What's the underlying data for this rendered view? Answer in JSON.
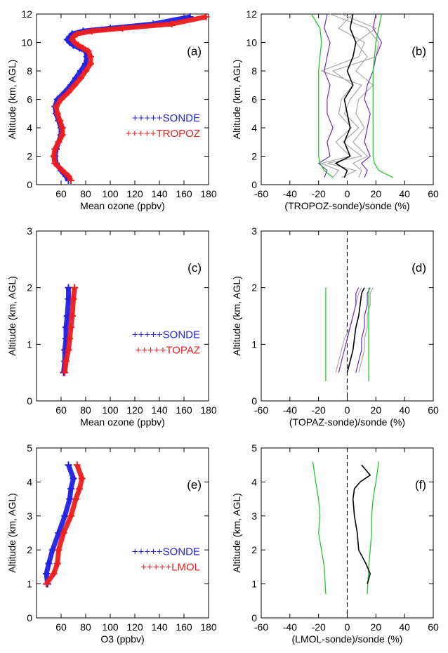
{
  "figure": {
    "background": "#ffffff",
    "colors": {
      "sonde": "#1f1fe6",
      "instrument": "#ee1c1c",
      "bias": "#000000",
      "individual_tropoz": "#a9a9a9",
      "individual_uncert": "#6a2fbf",
      "uncertainty": "#22cc22"
    }
  },
  "chart_data": [
    {
      "id": "a",
      "type": "scatter",
      "panel_label": "(a)",
      "xlabel": "Mean ozone (ppbv)",
      "ylabel": "Altitude (km, AGL)",
      "xlim": [
        40,
        180
      ],
      "ylim": [
        0,
        12
      ],
      "xticks": [
        "60",
        "80",
        "100",
        "120",
        "140",
        "160",
        "180"
      ],
      "yticks": [
        "0",
        "2",
        "4",
        "6",
        "8",
        "10",
        "12"
      ],
      "legend": [
        {
          "text": "+++++SONDE",
          "color": "#1f1fe6"
        },
        {
          "text": "+++++TROPOZ",
          "color": "#ee1c1c"
        }
      ],
      "series": [
        {
          "name": "SONDE",
          "color": "#1f1fe6",
          "x": [
            66,
            64,
            60,
            56,
            55,
            56,
            58,
            60,
            60,
            58,
            56,
            55,
            57,
            63,
            68,
            72,
            76,
            80,
            81,
            80,
            75,
            70,
            67,
            65,
            67,
            69,
            78,
            100,
            135,
            165
          ],
          "y": [
            0.3,
            0.6,
            1.0,
            1.5,
            2.0,
            2.5,
            3.0,
            3.5,
            4.0,
            4.5,
            5.0,
            5.5,
            6.0,
            6.5,
            7.0,
            7.5,
            8.0,
            8.5,
            9.0,
            9.4,
            9.6,
            9.8,
            10.0,
            10.2,
            10.4,
            10.6,
            10.8,
            11.0,
            11.3,
            11.8
          ]
        },
        {
          "name": "TROPOZ",
          "color": "#ee1c1c",
          "x": [
            68,
            66,
            61,
            55,
            54,
            55,
            58,
            61,
            61,
            59,
            57,
            56,
            60,
            66,
            71,
            76,
            80,
            84,
            84,
            82,
            78,
            74,
            71,
            69,
            70,
            73,
            85,
            110,
            150,
            178
          ],
          "y": [
            0.3,
            0.6,
            1.0,
            1.5,
            2.0,
            2.5,
            3.0,
            3.5,
            4.0,
            4.5,
            5.0,
            5.5,
            6.0,
            6.5,
            7.0,
            7.5,
            8.0,
            8.5,
            9.0,
            9.4,
            9.6,
            9.8,
            10.0,
            10.2,
            10.4,
            10.6,
            10.8,
            11.0,
            11.3,
            11.8
          ]
        }
      ]
    },
    {
      "id": "b",
      "type": "line",
      "panel_label": "(b)",
      "xlabel": "(TROPOZ-sonde)/sonde (%)",
      "ylabel": "Altitude (km, AGL)",
      "xlim": [
        -60,
        60
      ],
      "ylim": [
        0,
        12
      ],
      "xticks": [
        "-60",
        "-40",
        "-20",
        "0",
        "20",
        "40",
        "60"
      ],
      "yticks": [
        "0",
        "2",
        "4",
        "6",
        "8",
        "10",
        "12"
      ],
      "zero_line": false,
      "band_y": [
        0.5,
        1.0,
        1.5,
        2.0,
        3.0,
        4.0,
        5.0,
        6.0,
        7.0,
        8.0,
        9.0,
        10.0,
        11.0,
        12.0
      ],
      "bands": [
        {
          "name": "individual-gray",
          "color": "#a9a9a9",
          "x": [
            -4,
            6,
            -14,
            10,
            -3,
            8,
            -2,
            2,
            10,
            -18,
            8,
            12,
            -6,
            4
          ]
        },
        {
          "name": "individual-gray-2",
          "color": "#a9a9a9",
          "x": [
            -10,
            -6,
            -18,
            2,
            -8,
            3,
            -6,
            -4,
            4,
            -10,
            20,
            22,
            14,
            -12
          ]
        },
        {
          "name": "individual-gray-3",
          "color": "#a9a9a9",
          "x": [
            8,
            10,
            4,
            14,
            4,
            12,
            6,
            8,
            18,
            6,
            14,
            6,
            20,
            -4
          ]
        },
        {
          "name": "individual-purple",
          "color": "#6a2fbf",
          "x": [
            -16,
            -14,
            -20,
            -12,
            -14,
            -10,
            -14,
            -14,
            -12,
            -16,
            -14,
            -12,
            -16,
            -14
          ]
        },
        {
          "name": "individual-purple-2",
          "color": "#6a2fbf",
          "x": [
            12,
            14,
            10,
            16,
            12,
            14,
            16,
            12,
            14,
            18,
            20,
            24,
            18,
            20
          ]
        }
      ],
      "mean": {
        "color": "#000000",
        "x": [
          -2,
          0,
          -8,
          2,
          -2,
          2,
          0,
          -2,
          4,
          0,
          4,
          6,
          2,
          4
        ]
      },
      "uncertainty": {
        "color": "#22cc22",
        "y": [
          0.5,
          1.0,
          1.5,
          2.0,
          3.0,
          4.0,
          5.0,
          6.0,
          7.0,
          8.0,
          9.0,
          10.0,
          11.0,
          12.0
        ],
        "left_x": [
          -10,
          -16,
          -19,
          -20,
          -20,
          -20,
          -20,
          -20,
          -20,
          -20,
          -19,
          -18,
          -19,
          -25
        ],
        "right_x": [
          32,
          22,
          19,
          18,
          18,
          18,
          18,
          18,
          18,
          18,
          19,
          20,
          22,
          24
        ]
      }
    },
    {
      "id": "c",
      "type": "scatter",
      "panel_label": "(c)",
      "xlabel": "Mean ozone (ppbv)",
      "ylabel": "Altitude (km, AGL)",
      "xlim": [
        40,
        180
      ],
      "ylim": [
        0,
        3
      ],
      "xticks": [
        "60",
        "80",
        "100",
        "120",
        "140",
        "160",
        "180"
      ],
      "yticks": [
        "0",
        "1",
        "2",
        "3"
      ],
      "legend": [
        {
          "text": "+++++SONDE",
          "color": "#1f1fe6"
        },
        {
          "text": "+++++TOPAZ",
          "color": "#ee1c1c"
        }
      ],
      "series": [
        {
          "name": "SONDE",
          "color": "#1f1fe6",
          "x": [
            62,
            63,
            63,
            64,
            64,
            65,
            66,
            66
          ],
          "y": [
            0.5,
            0.7,
            0.9,
            1.1,
            1.3,
            1.5,
            1.8,
            2.0
          ]
        },
        {
          "name": "TOPAZ",
          "color": "#ee1c1c",
          "x": [
            63,
            64,
            66,
            67,
            68,
            69,
            70,
            71
          ],
          "y": [
            0.5,
            0.7,
            0.9,
            1.1,
            1.3,
            1.5,
            1.8,
            2.0
          ]
        }
      ]
    },
    {
      "id": "d",
      "type": "line",
      "panel_label": "(d)",
      "xlabel": "(TOPAZ-sonde)/sonde (%)",
      "ylabel": "Altitude (km, AGL)",
      "xlim": [
        -60,
        60
      ],
      "ylim": [
        0,
        3
      ],
      "xticks": [
        "-60",
        "-40",
        "-20",
        "0",
        "20",
        "40",
        "60"
      ],
      "yticks": [
        "0",
        "1",
        "2",
        "3"
      ],
      "zero_line": true,
      "band_y": [
        0.5,
        0.7,
        0.9,
        1.1,
        1.3,
        1.5,
        1.7,
        1.9,
        2.0
      ],
      "bands": [
        {
          "name": "individual-gray",
          "color": "#a9a9a9",
          "x": [
            -8,
            -6,
            -4,
            -2,
            2,
            4,
            6,
            8,
            10
          ]
        },
        {
          "name": "individual-gray-2",
          "color": "#a9a9a9",
          "x": [
            8,
            10,
            12,
            12,
            14,
            14,
            16,
            16,
            18
          ]
        },
        {
          "name": "individual-purple",
          "color": "#6a2fbf",
          "x": [
            -6,
            -4,
            -2,
            0,
            2,
            4,
            6,
            6,
            8
          ]
        },
        {
          "name": "individual-purple-2",
          "color": "#6a2fbf",
          "x": [
            6,
            8,
            10,
            10,
            12,
            12,
            14,
            14,
            16
          ]
        }
      ],
      "mean": {
        "color": "#000000",
        "x": [
          0,
          2,
          4,
          5,
          6,
          8,
          9,
          10,
          12
        ]
      },
      "uncertainty": {
        "color": "#22cc22",
        "y": [
          0.35,
          2.0
        ],
        "left_x": [
          -15,
          -15
        ],
        "right_x": [
          15,
          15
        ]
      }
    },
    {
      "id": "e",
      "type": "scatter",
      "panel_label": "(e)",
      "xlabel": "O3 (ppbv)",
      "ylabel": "Altitude (km, AGL)",
      "xlim": [
        40,
        180
      ],
      "ylim": [
        0,
        5
      ],
      "xticks": [
        "60",
        "80",
        "100",
        "120",
        "140",
        "160",
        "180"
      ],
      "yticks": [
        "0",
        "1",
        "2",
        "3",
        "4",
        "5"
      ],
      "legend": [
        {
          "text": "+++++SONDE",
          "color": "#1f1fe6"
        },
        {
          "text": "+++++LMOL",
          "color": "#ee1c1c"
        }
      ],
      "series": [
        {
          "name": "SONDE",
          "color": "#1f1fe6",
          "x": [
            49,
            48,
            50,
            53,
            58,
            63,
            67,
            68,
            70,
            66
          ],
          "y": [
            1.0,
            1.3,
            1.6,
            2.0,
            2.5,
            3.0,
            3.5,
            3.8,
            4.1,
            4.5
          ]
        },
        {
          "name": "LMOL",
          "color": "#ee1c1c",
          "x": [
            48,
            54,
            57,
            58,
            62,
            68,
            72,
            75,
            77,
            73
          ],
          "y": [
            1.0,
            1.3,
            1.6,
            2.0,
            2.5,
            3.0,
            3.5,
            3.8,
            4.1,
            4.5
          ]
        }
      ]
    },
    {
      "id": "f",
      "type": "line",
      "panel_label": "(f)",
      "xlabel": "(LMOL-sonde)/sonde (%)",
      "ylabel": "Altitude (km, AGL)",
      "xlim": [
        -60,
        60
      ],
      "ylim": [
        0,
        5
      ],
      "xticks": [
        "-60",
        "-40",
        "-20",
        "0",
        "20",
        "40",
        "60"
      ],
      "yticks": [
        "0",
        "1",
        "2",
        "3",
        "4",
        "5"
      ],
      "zero_line": true,
      "band_y": [],
      "bands": [],
      "mean": {
        "color": "#000000",
        "y": [
          1.0,
          1.3,
          1.6,
          2.0,
          2.5,
          3.0,
          3.5,
          3.8,
          4.0,
          4.2,
          4.5
        ],
        "x": [
          14,
          16,
          13,
          8,
          7,
          5,
          4,
          5,
          9,
          16,
          10
        ]
      },
      "uncertainty": {
        "color": "#22cc22",
        "y": [
          0.7,
          1.5,
          2.0,
          2.5,
          3.0,
          3.5,
          4.0,
          4.6
        ],
        "left_x": [
          -15,
          -16,
          -18,
          -20,
          -19,
          -20,
          -22,
          -24
        ],
        "right_x": [
          14,
          15,
          16,
          17,
          17,
          18,
          20,
          22
        ]
      }
    }
  ]
}
